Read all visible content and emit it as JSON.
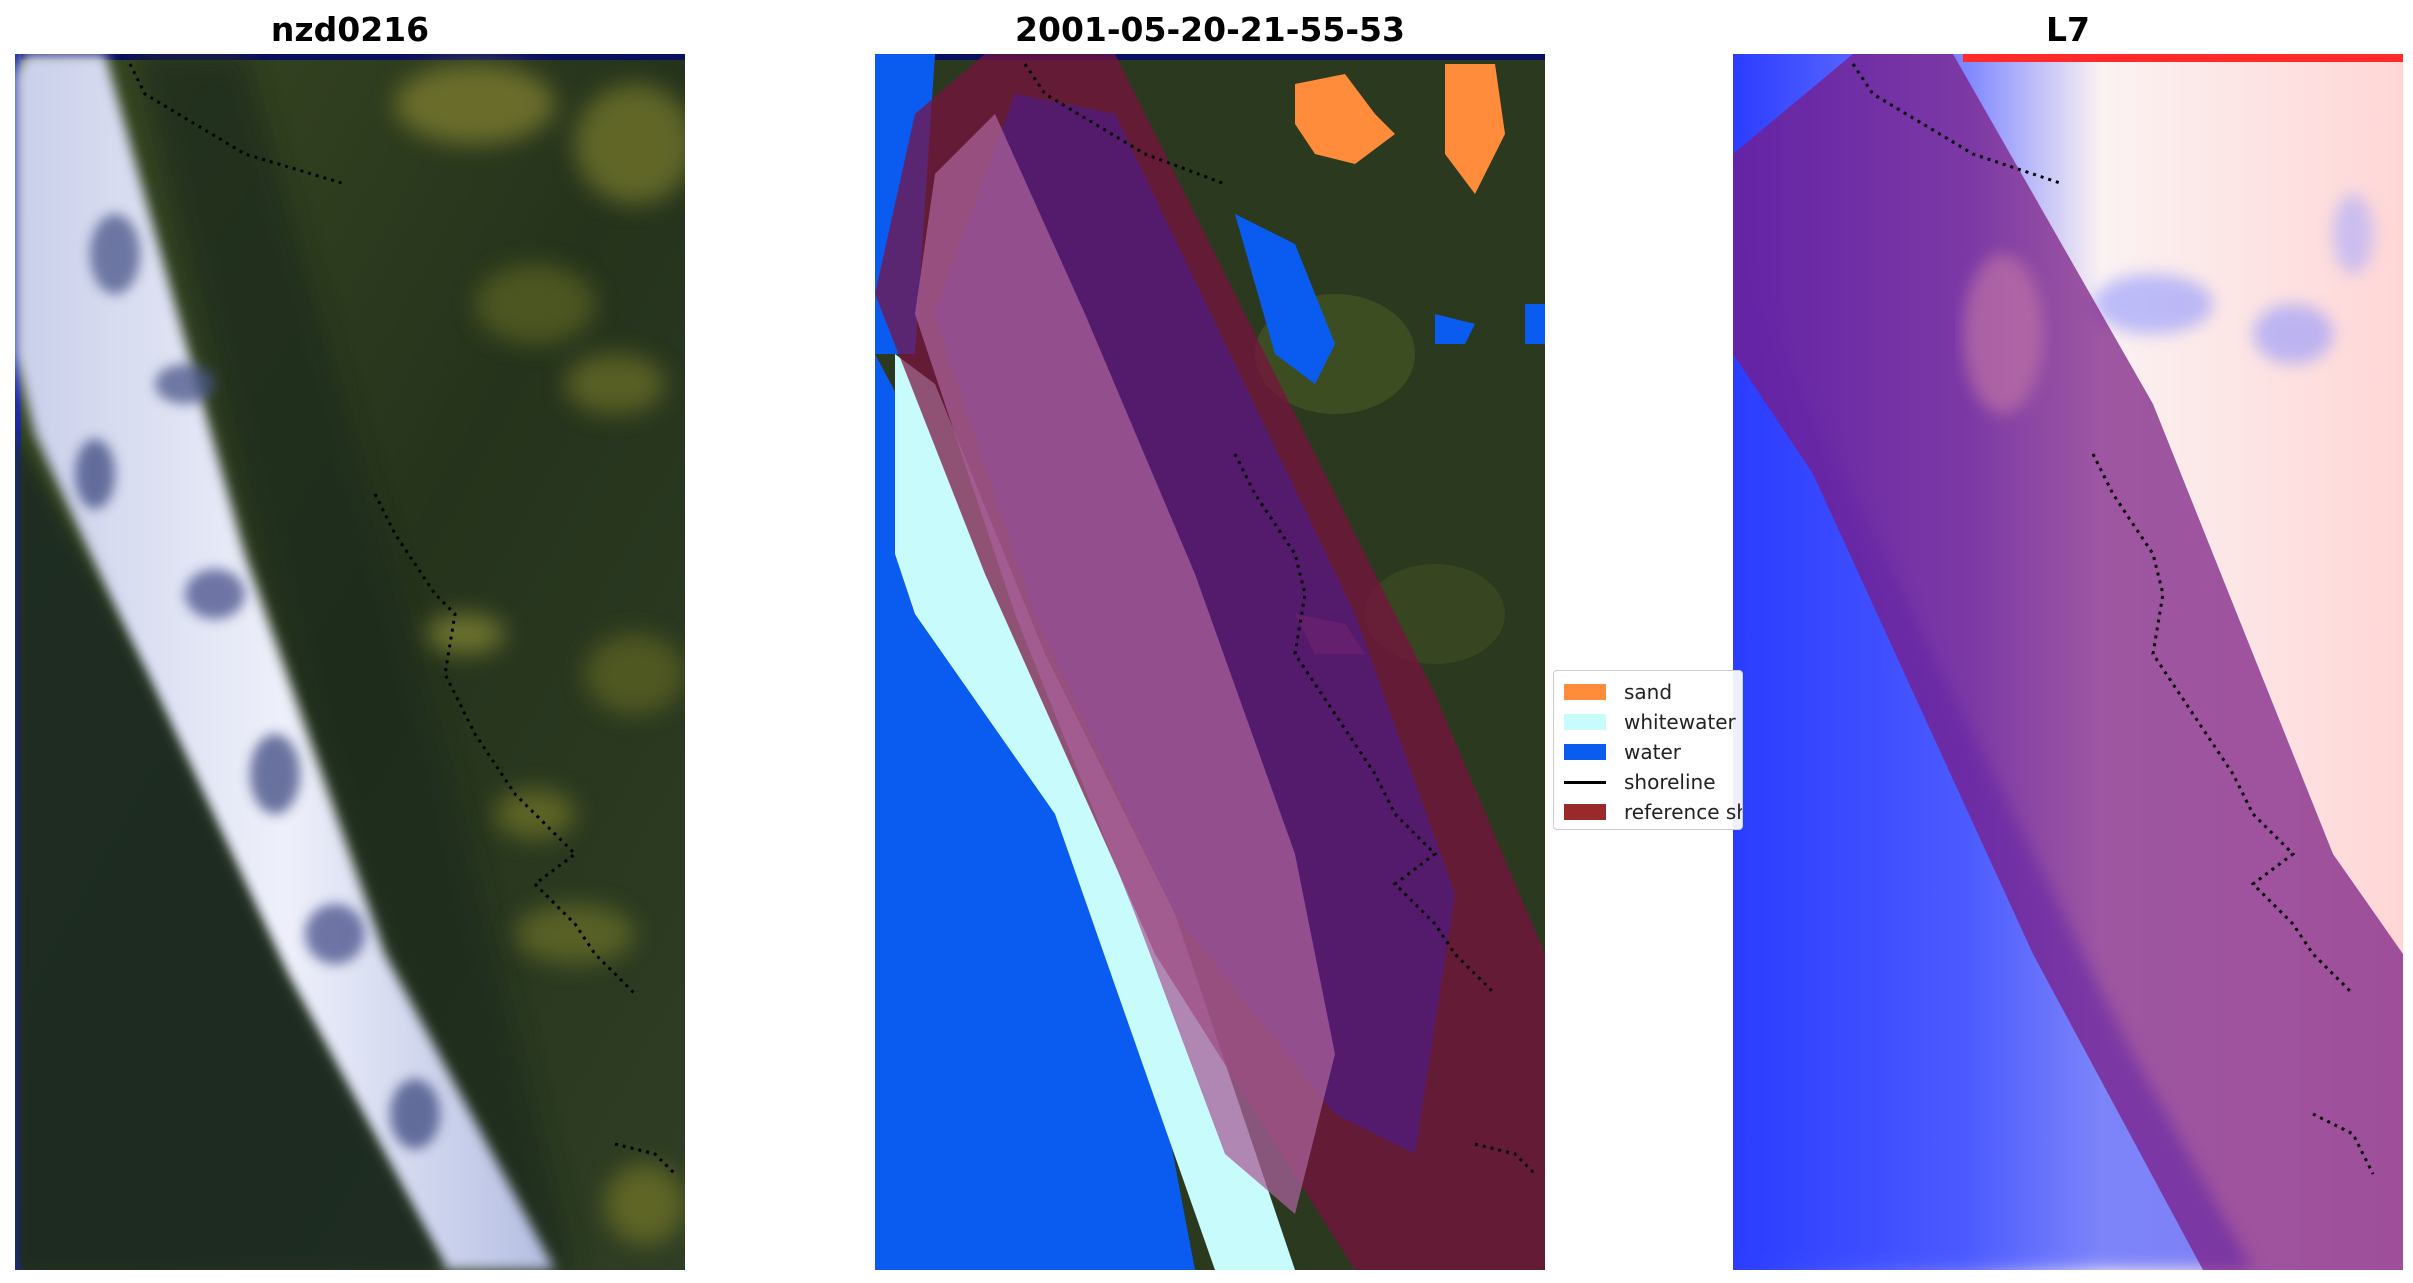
{
  "figure": {
    "panels": [
      {
        "title": "nzd0216"
      },
      {
        "title": "2001-05-20-21-55-53"
      },
      {
        "title": "L7"
      }
    ],
    "legend": {
      "placement": "center, between middle and right panels",
      "items": [
        {
          "label": "sand",
          "color": "#ff8c3a",
          "kind": "patch"
        },
        {
          "label": "whitewater",
          "color": "#c8fcfc",
          "kind": "patch"
        },
        {
          "label": "water",
          "color": "#0a5cf0",
          "kind": "patch"
        },
        {
          "label": "shoreline",
          "color": "#000000",
          "kind": "line"
        },
        {
          "label": "reference shoreline buffer",
          "color": "#9a2a2a",
          "kind": "patch"
        }
      ]
    },
    "colors": {
      "forest": "#2b3a1e",
      "forest_light": "#4a5a22",
      "surf_white": "#e4e8f6",
      "surf_blue": "#8a92c8",
      "buffer_overlay": "#7a1040",
      "index_blue": "#2b3cff",
      "index_red": "#ff2a2a",
      "index_white": "#fbf2f2",
      "frame_top": "#0a1060"
    }
  }
}
